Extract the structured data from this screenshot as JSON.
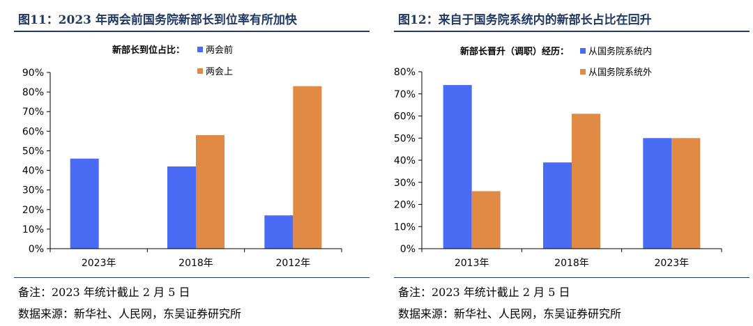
{
  "left": {
    "title": "图11：2023 年两会前国务院新部长到位率有所加快",
    "note": "备注：2023 年统计截止 2 月 5 日",
    "source": "数据来源：新华社、人民网，东吴证券研究所"
  },
  "right": {
    "title": "图12：来自于国务院系统内的新部长占比在回升",
    "note": "备注：2023 年统计截止 2 月 5 日",
    "source": "数据来源：新华社、人民网，东吴证券研究所"
  },
  "chart_data": [
    {
      "type": "bar",
      "legend_title": "新部长到位占比：",
      "categories": [
        "2023年",
        "2018年",
        "2012年"
      ],
      "series": [
        {
          "name": "两会前",
          "color": "#4a6cf4",
          "values": [
            0.46,
            0.42,
            0.17
          ]
        },
        {
          "name": "两会上",
          "color": "#e08a46",
          "values": [
            null,
            0.58,
            0.83
          ]
        }
      ],
      "yticks": [
        "0%",
        "10%",
        "20%",
        "30%",
        "40%",
        "50%",
        "60%",
        "70%",
        "80%",
        "90%"
      ],
      "ylim": [
        0,
        0.9
      ],
      "legend_position": "top-center",
      "grid": false
    },
    {
      "type": "bar",
      "legend_title": "新部长晋升（调职）经历：",
      "categories": [
        "2013年",
        "2018年",
        "2023年"
      ],
      "series": [
        {
          "name": "从国务院系统内",
          "color": "#4a6cf4",
          "values": [
            0.74,
            0.39,
            0.5
          ]
        },
        {
          "name": "从国务院系统外",
          "color": "#e08a46",
          "values": [
            0.26,
            0.61,
            0.5
          ]
        }
      ],
      "yticks": [
        "0%",
        "10%",
        "20%",
        "30%",
        "40%",
        "50%",
        "60%",
        "70%",
        "80%"
      ],
      "ylim": [
        0,
        0.8
      ],
      "legend_position": "top-center",
      "grid": false
    }
  ]
}
